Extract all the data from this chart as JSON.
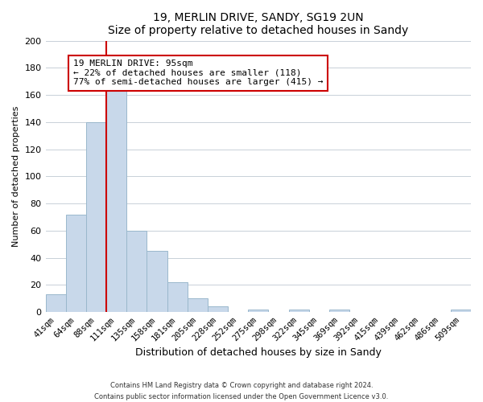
{
  "title": "19, MERLIN DRIVE, SANDY, SG19 2UN",
  "subtitle": "Size of property relative to detached houses in Sandy",
  "xlabel": "Distribution of detached houses by size in Sandy",
  "ylabel": "Number of detached properties",
  "bar_labels": [
    "41sqm",
    "64sqm",
    "88sqm",
    "111sqm",
    "135sqm",
    "158sqm",
    "181sqm",
    "205sqm",
    "228sqm",
    "252sqm",
    "275sqm",
    "298sqm",
    "322sqm",
    "345sqm",
    "369sqm",
    "392sqm",
    "415sqm",
    "439sqm",
    "462sqm",
    "486sqm",
    "509sqm"
  ],
  "bar_values": [
    13,
    72,
    140,
    165,
    60,
    45,
    22,
    10,
    4,
    0,
    2,
    0,
    2,
    0,
    2,
    0,
    0,
    0,
    0,
    0,
    2
  ],
  "bar_color": "#c8d8ea",
  "bar_edge_color": "#9ab8cc",
  "line_color": "#cc0000",
  "annotation_text": "19 MERLIN DRIVE: 95sqm\n← 22% of detached houses are smaller (118)\n77% of semi-detached houses are larger (415) →",
  "annotation_box_edge": "#cc0000",
  "ylim": [
    0,
    200
  ],
  "yticks": [
    0,
    20,
    40,
    60,
    80,
    100,
    120,
    140,
    160,
    180,
    200
  ],
  "footer_line1": "Contains HM Land Registry data © Crown copyright and database right 2024.",
  "footer_line2": "Contains public sector information licensed under the Open Government Licence v3.0.",
  "grid_color": "#c8d0d8"
}
